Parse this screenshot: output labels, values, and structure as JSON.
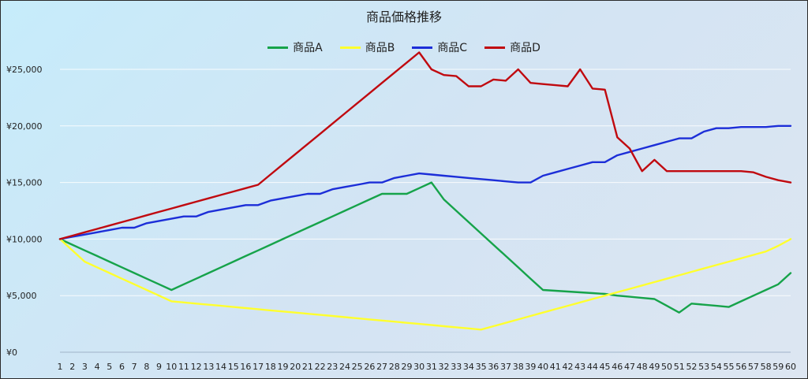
{
  "chart_data": {
    "type": "line",
    "title": "商品価格推移",
    "xlabel": "",
    "ylabel": "",
    "legend_position": "top",
    "grid": true,
    "x": [
      1,
      2,
      3,
      4,
      5,
      6,
      7,
      8,
      9,
      10,
      11,
      12,
      13,
      14,
      15,
      16,
      17,
      18,
      19,
      20,
      21,
      22,
      23,
      24,
      25,
      26,
      27,
      28,
      29,
      30,
      31,
      32,
      33,
      34,
      35,
      36,
      37,
      38,
      39,
      40,
      41,
      42,
      43,
      44,
      45,
      46,
      47,
      48,
      49,
      50,
      51,
      52,
      53,
      54,
      55,
      56,
      57,
      58,
      59,
      60
    ],
    "x_tick_labels": [
      "1",
      "2",
      "3",
      "4",
      "5",
      "6",
      "7",
      "8",
      "9",
      "10",
      "11",
      "12",
      "13",
      "14",
      "15",
      "16",
      "17",
      "18",
      "19",
      "20",
      "21",
      "22",
      "23",
      "24",
      "25",
      "26",
      "27",
      "28",
      "29",
      "30",
      "31",
      "32",
      "33",
      "34",
      "35",
      "36",
      "37",
      "38",
      "39",
      "40",
      "41",
      "42",
      "43",
      "44",
      "45",
      "46",
      "47",
      "48",
      "49",
      "50",
      "51",
      "52",
      "53",
      "54",
      "55",
      "56",
      "57",
      "58",
      "59",
      "60"
    ],
    "ylim": [
      0,
      25000
    ],
    "y_ticks": [
      0,
      5000,
      10000,
      15000,
      20000,
      25000
    ],
    "y_tick_labels": [
      "¥0",
      "¥5,000",
      "¥10,000",
      "¥15,000",
      "¥20,000",
      "¥25,000"
    ],
    "series": [
      {
        "name": "商品A",
        "color": "#16a34a",
        "values": [
          10000,
          9500,
          9000,
          8500,
          8000,
          7500,
          7000,
          6500,
          6000,
          5500,
          6000,
          6500,
          7000,
          7500,
          8000,
          8500,
          9000,
          9500,
          10000,
          10500,
          11000,
          11500,
          12000,
          12500,
          13000,
          13500,
          14000,
          14000,
          14000,
          14500,
          15000,
          13500,
          12500,
          11500,
          10500,
          9500,
          8500,
          7500,
          6500,
          5500,
          5430,
          5360,
          5290,
          5220,
          5150,
          5000,
          4900,
          4800,
          4700,
          4100,
          3500,
          4300,
          4200,
          4100,
          4000,
          4500,
          5000,
          5500,
          6000,
          7000
        ]
      },
      {
        "name": "商品B",
        "color": "#ffff2e",
        "values": [
          10000,
          9000,
          8000,
          7500,
          7000,
          6500,
          6000,
          5500,
          5000,
          4500,
          4400,
          4300,
          4200,
          4100,
          4000,
          3900,
          3800,
          3700,
          3600,
          3500,
          3400,
          3300,
          3200,
          3100,
          3000,
          2900,
          2800,
          2700,
          2600,
          2500,
          2400,
          2300,
          2200,
          2100,
          2000,
          2300,
          2600,
          2900,
          3200,
          3500,
          3800,
          4100,
          4400,
          4700,
          5000,
          5300,
          5600,
          5900,
          6200,
          6500,
          6800,
          7100,
          7400,
          7700,
          8000,
          8300,
          8600,
          8900,
          9400,
          10000
        ]
      },
      {
        "name": "商品C",
        "color": "#1c2ed8",
        "values": [
          10000,
          10200,
          10400,
          10600,
          10800,
          11000,
          11000,
          11400,
          11600,
          11800,
          12000,
          12000,
          12400,
          12600,
          12800,
          13000,
          13000,
          13400,
          13600,
          13800,
          14000,
          14000,
          14400,
          14600,
          14800,
          15000,
          15000,
          15400,
          15600,
          15800,
          15700,
          15600,
          15500,
          15400,
          15300,
          15200,
          15100,
          15000,
          15000,
          15600,
          15900,
          16200,
          16500,
          16800,
          16800,
          17400,
          17700,
          18000,
          18300,
          18600,
          18900,
          18900,
          19500,
          19800,
          19800,
          19900,
          19900,
          19900,
          20000,
          20000
        ]
      },
      {
        "name": "商品D",
        "color": "#c0090f",
        "values": [
          10000,
          10300,
          10600,
          10900,
          11200,
          11500,
          11800,
          12100,
          12400,
          12700,
          13000,
          13300,
          13600,
          13900,
          14200,
          14500,
          14800,
          15700,
          16600,
          17500,
          18400,
          19300,
          20200,
          21100,
          22000,
          22900,
          23800,
          24700,
          25600,
          26500,
          25000,
          24500,
          24400,
          23500,
          23500,
          24100,
          24000,
          25000,
          23800,
          23700,
          23600,
          23500,
          25000,
          23300,
          23200,
          19000,
          18000,
          16000,
          17000,
          16000,
          16000,
          16000,
          16000,
          16000,
          16000,
          16000,
          15900,
          15500,
          15200,
          15000
        ]
      }
    ]
  }
}
